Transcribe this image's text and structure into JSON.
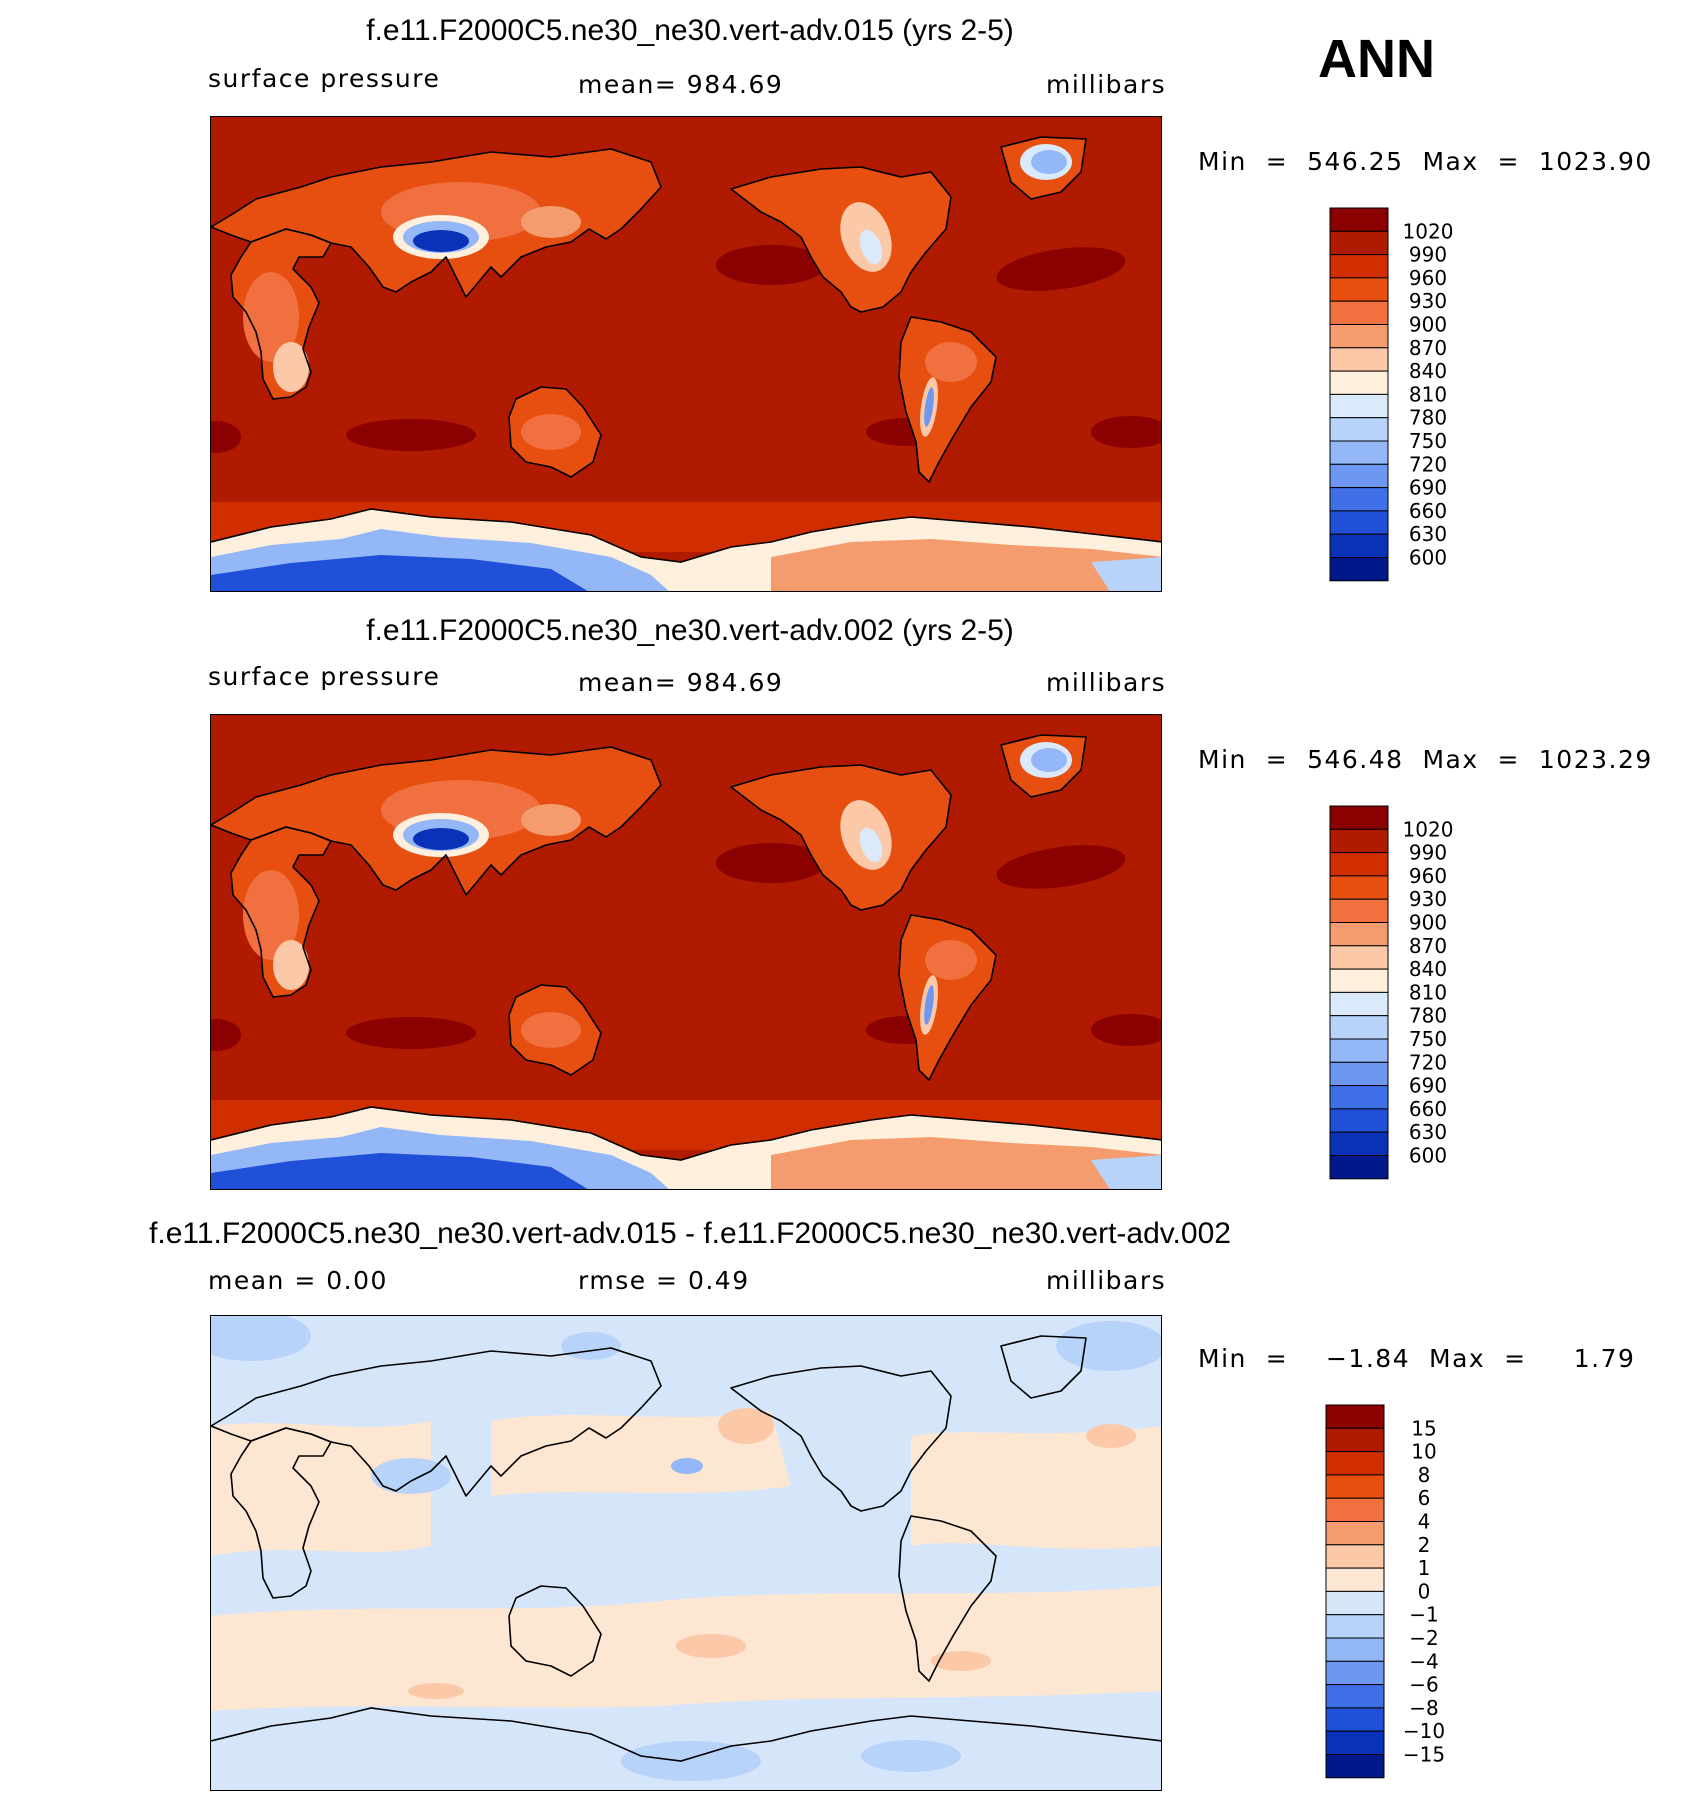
{
  "season": "ANN",
  "panels": [
    {
      "title": "f.e11.F2000C5.ne30_ne30.vert-adv.015 (yrs 2-5)",
      "left_label": "surface pressure",
      "center_label": "mean=  984.69",
      "right_label": "millibars",
      "minmax": "Min  =  546.25  Max  =  1023.90",
      "field": "abs"
    },
    {
      "title": "f.e11.F2000C5.ne30_ne30.vert-adv.002 (yrs 2-5)",
      "left_label": "surface pressure",
      "center_label": "mean=  984.69",
      "right_label": "millibars",
      "minmax": "Min  =  546.48  Max  =  1023.29",
      "field": "abs"
    },
    {
      "title": "f.e11.F2000C5.ne30_ne30.vert-adv.015 - f.e11.F2000C5.ne30_ne30.vert-adv.002",
      "left_label": "mean  =     0.00",
      "center_label": "rmse  =     0.49",
      "right_label": "millibars",
      "minmax": "Min  =    −1.84  Max  =     1.79",
      "field": "diff"
    }
  ],
  "colorbars": {
    "abs": {
      "labels": [
        "1020",
        "990",
        "960",
        "930",
        "900",
        "870",
        "840",
        "810",
        "780",
        "750",
        "720",
        "690",
        "660",
        "630",
        "600"
      ],
      "colors": [
        "#8b0000",
        "#b01a00",
        "#d12e00",
        "#e64f10",
        "#f07040",
        "#f59c6e",
        "#fbc8a8",
        "#fff0dd",
        "#dbeafb",
        "#b7d3fa",
        "#93b7f7",
        "#6d97f0",
        "#4070e8",
        "#2050d8",
        "#0a32b8",
        "#00188a"
      ]
    },
    "diff": {
      "labels": [
        "15",
        "10",
        "8",
        "6",
        "4",
        "2",
        "1",
        "0",
        "−1",
        "−2",
        "−4",
        "−6",
        "−8",
        "−10",
        "−15"
      ],
      "colors": [
        "#8b0000",
        "#b01a00",
        "#d12e00",
        "#e64f10",
        "#f07040",
        "#f59c6e",
        "#fbc8a8",
        "#fde6d2",
        "#d5e6fb",
        "#b7d3fa",
        "#93b7f7",
        "#6d97f0",
        "#4070e8",
        "#2050d8",
        "#0a32b8",
        "#00188a"
      ]
    }
  }
}
